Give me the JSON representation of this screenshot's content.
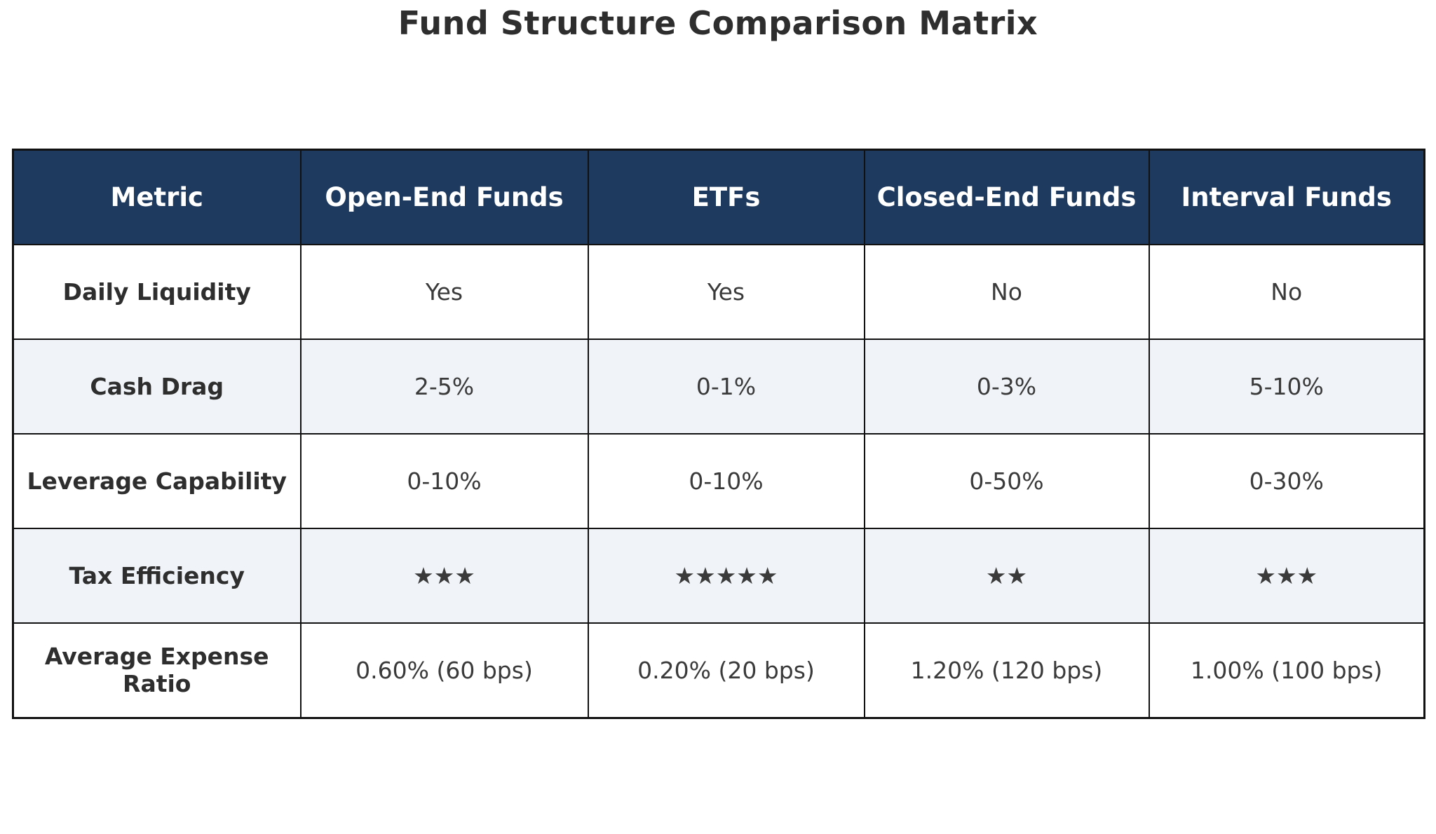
{
  "title": "Fund Structure Comparison Matrix",
  "chart_data": {
    "type": "table",
    "title": "Fund Structure Comparison Matrix",
    "columns": [
      "Metric",
      "Open-End Funds",
      "ETFs",
      "Closed-End Funds",
      "Interval Funds"
    ],
    "rows": [
      {
        "metric": "Daily Liquidity",
        "values": [
          "Yes",
          "Yes",
          "No",
          "No"
        ]
      },
      {
        "metric": "Cash Drag",
        "values": [
          "2-5%",
          "0-1%",
          "0-3%",
          "5-10%"
        ]
      },
      {
        "metric": "Leverage Capability",
        "values": [
          "0-10%",
          "0-10%",
          "0-50%",
          "0-30%"
        ]
      },
      {
        "metric": "Tax Efficiency",
        "values": [
          "★★★",
          "★★★★★",
          "★★",
          "★★★"
        ]
      },
      {
        "metric": "Average Expense Ratio",
        "values": [
          "0.60% (60 bps)",
          "0.20% (20 bps)",
          "1.20% (120 bps)",
          "1.00% (100 bps)"
        ]
      }
    ],
    "tax_efficiency_stars": {
      "Open-End Funds": 3,
      "ETFs": 5,
      "Closed-End Funds": 2,
      "Interval Funds": 3
    },
    "layout": {
      "header_position": "top",
      "striped_rows": "alternating",
      "grid": "on"
    }
  },
  "colors": {
    "header_bg": "#1f3a5f",
    "header_text": "#ffffff",
    "stripe_bg": "#f0f4f8",
    "row_bg": "#ffffff",
    "border": "#111111",
    "title_text": "#2e2e2e",
    "cell_text": "#3a3a3a"
  }
}
